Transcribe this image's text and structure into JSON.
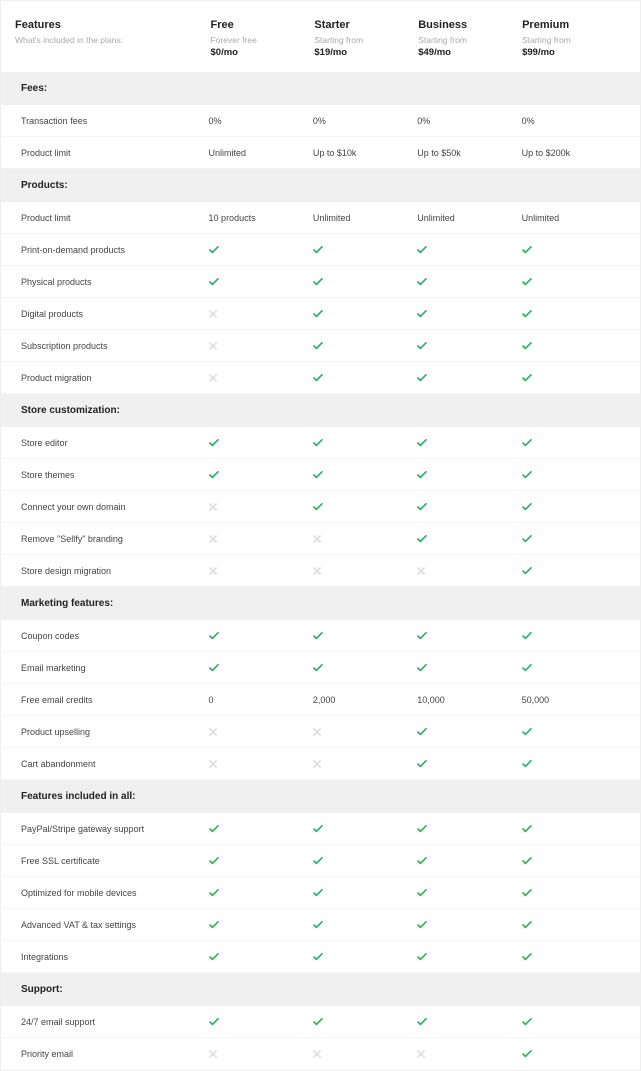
{
  "colors": {
    "check": "#27ae60",
    "cross": "#dddddd",
    "section_bg": "#f0f0f0",
    "border": "#eeeeee",
    "text": "#333333",
    "muted": "#aaaaaa"
  },
  "header": {
    "features_title": "Features",
    "features_subtitle": "What's included in the plans:"
  },
  "plans": [
    {
      "name": "Free",
      "subtitle": "Forever free",
      "price": "$0/mo"
    },
    {
      "name": "Starter",
      "subtitle": "Starting from",
      "price": "$19/mo"
    },
    {
      "name": "Business",
      "subtitle": "Starting from",
      "price": "$49/mo"
    },
    {
      "name": "Premium",
      "subtitle": "Starting from",
      "price": "$99/mo"
    }
  ],
  "sections": [
    {
      "title": "Fees:",
      "rows": [
        {
          "label": "Transaction fees",
          "cells": [
            "0%",
            "0%",
            "0%",
            "0%"
          ]
        },
        {
          "label": "Product limit",
          "cells": [
            "Unlimited",
            "Up to $10k",
            "Up to $50k",
            "Up to $200k"
          ]
        }
      ]
    },
    {
      "title": "Products:",
      "rows": [
        {
          "label": "Product limit",
          "cells": [
            "10 products",
            "Unlimited",
            "Unlimited",
            "Unlimited"
          ]
        },
        {
          "label": "Print-on-demand products",
          "cells": [
            "check",
            "check",
            "check",
            "check"
          ]
        },
        {
          "label": "Physical products",
          "cells": [
            "check",
            "check",
            "check",
            "check"
          ]
        },
        {
          "label": "Digital products",
          "cells": [
            "cross",
            "check",
            "check",
            "check"
          ]
        },
        {
          "label": "Subscription products",
          "cells": [
            "cross",
            "check",
            "check",
            "check"
          ]
        },
        {
          "label": "Product migration",
          "cells": [
            "cross",
            "check",
            "check",
            "check"
          ]
        }
      ]
    },
    {
      "title": "Store customization:",
      "rows": [
        {
          "label": "Store editor",
          "cells": [
            "check",
            "check",
            "check",
            "check"
          ]
        },
        {
          "label": "Store themes",
          "cells": [
            "check",
            "check",
            "check",
            "check"
          ]
        },
        {
          "label": "Connect your own domain",
          "cells": [
            "cross",
            "check",
            "check",
            "check"
          ]
        },
        {
          "label": "Remove \"Sellfy\" branding",
          "cells": [
            "cross",
            "cross",
            "check",
            "check"
          ]
        },
        {
          "label": "Store design migration",
          "cells": [
            "cross",
            "cross",
            "cross",
            "check"
          ]
        }
      ]
    },
    {
      "title": "Marketing features:",
      "rows": [
        {
          "label": "Coupon codes",
          "cells": [
            "check",
            "check",
            "check",
            "check"
          ]
        },
        {
          "label": "Email marketing",
          "cells": [
            "check",
            "check",
            "check",
            "check"
          ]
        },
        {
          "label": "Free email credits",
          "cells": [
            "0",
            "2,000",
            "10,000",
            "50,000"
          ]
        },
        {
          "label": "Product upselling",
          "cells": [
            "cross",
            "cross",
            "check",
            "check"
          ]
        },
        {
          "label": "Cart abandonment",
          "cells": [
            "cross",
            "cross",
            "check",
            "check"
          ]
        }
      ]
    },
    {
      "title": "Features included in all:",
      "rows": [
        {
          "label": "PayPal/Stripe gateway support",
          "cells": [
            "check",
            "check",
            "check",
            "check"
          ]
        },
        {
          "label": "Free SSL certificate",
          "cells": [
            "check",
            "check",
            "check",
            "check"
          ]
        },
        {
          "label": "Optimized for mobile devices",
          "cells": [
            "check",
            "check",
            "check",
            "check"
          ]
        },
        {
          "label": "Advanced VAT & tax settings",
          "cells": [
            "check",
            "check",
            "check",
            "check"
          ]
        },
        {
          "label": "Integrations",
          "cells": [
            "check",
            "check",
            "check",
            "check"
          ]
        }
      ]
    },
    {
      "title": "Support:",
      "rows": [
        {
          "label": "24/7 email support",
          "cells": [
            "check",
            "check",
            "check",
            "check"
          ]
        },
        {
          "label": "Priority email",
          "cells": [
            "cross",
            "cross",
            "cross",
            "check"
          ]
        }
      ]
    }
  ]
}
